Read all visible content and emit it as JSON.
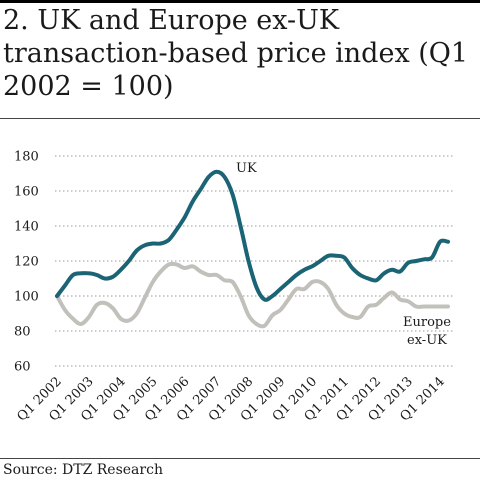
{
  "title": "2. UK and Europe ex-UK transaction-based price index (Q1 2002 = 100)",
  "source": "Source: DTZ Research",
  "colors": {
    "uk": "#1a6475",
    "europe": "#c2c0bb",
    "grid": "#9a9a9a",
    "text": "#1a1a1a"
  },
  "chart_data": {
    "type": "line",
    "title": "2. UK and Europe ex-UK transaction-based price index (Q1 2002 = 100)",
    "xlabel": "",
    "ylabel": "",
    "ylim": [
      60,
      180
    ],
    "yticks": [
      "60",
      "80",
      "100",
      "120",
      "140",
      "160",
      "180"
    ],
    "ytick_values": [
      60,
      80,
      100,
      120,
      140,
      160,
      180
    ],
    "xticks": [
      "Q1 2002",
      "Q1 2003",
      "Q1 2004",
      "Q1 2005",
      "Q1 2006",
      "Q1 2007",
      "Q1 2008",
      "Q1 2009",
      "Q1 2010",
      "Q1 2011",
      "Q1 2012",
      "Q1 2013",
      "Q1 2014"
    ],
    "grid": "horizontal dotted",
    "legend": "inline labels",
    "series": [
      {
        "name": "UK",
        "label_lines": [
          "UK"
        ],
        "x": [
          "2002Q1",
          "2002Q2",
          "2002Q3",
          "2002Q4",
          "2003Q1",
          "2003Q2",
          "2003Q3",
          "2003Q4",
          "2004Q1",
          "2004Q2",
          "2004Q3",
          "2004Q4",
          "2005Q1",
          "2005Q2",
          "2005Q3",
          "2005Q4",
          "2006Q1",
          "2006Q2",
          "2006Q3",
          "2006Q4",
          "2007Q1",
          "2007Q2",
          "2007Q3",
          "2007Q4",
          "2008Q1",
          "2008Q2",
          "2008Q3",
          "2008Q4",
          "2009Q1",
          "2009Q2",
          "2009Q3",
          "2009Q4",
          "2010Q1",
          "2010Q2",
          "2010Q3",
          "2010Q4",
          "2011Q1",
          "2011Q2",
          "2011Q3",
          "2011Q4",
          "2012Q1",
          "2012Q2",
          "2012Q3",
          "2012Q4",
          "2013Q1",
          "2013Q2",
          "2013Q3",
          "2013Q4",
          "2014Q1",
          "2014Q2"
        ],
        "values": [
          100,
          106,
          112,
          113,
          113,
          112,
          110,
          111,
          115,
          120,
          126,
          129,
          130,
          130,
          132,
          138,
          145,
          154,
          161,
          168,
          171,
          168,
          158,
          140,
          120,
          105,
          98,
          100,
          104,
          108,
          112,
          115,
          117,
          120,
          123,
          123,
          122,
          116,
          112,
          110,
          109,
          113,
          115,
          114,
          119,
          120,
          121,
          122,
          131,
          131
        ]
      },
      {
        "name": "Europe ex-UK",
        "label_lines": [
          "Europe",
          "ex-UK"
        ],
        "x": [
          "2002Q1",
          "2002Q2",
          "2002Q3",
          "2002Q4",
          "2003Q1",
          "2003Q2",
          "2003Q3",
          "2003Q4",
          "2004Q1",
          "2004Q2",
          "2004Q3",
          "2004Q4",
          "2005Q1",
          "2005Q2",
          "2005Q3",
          "2005Q4",
          "2006Q1",
          "2006Q2",
          "2006Q3",
          "2006Q4",
          "2007Q1",
          "2007Q2",
          "2007Q3",
          "2007Q4",
          "2008Q1",
          "2008Q2",
          "2008Q3",
          "2008Q4",
          "2009Q1",
          "2009Q2",
          "2009Q3",
          "2009Q4",
          "2010Q1",
          "2010Q2",
          "2010Q3",
          "2010Q4",
          "2011Q1",
          "2011Q2",
          "2011Q3",
          "2011Q4",
          "2012Q1",
          "2012Q2",
          "2012Q3",
          "2012Q4",
          "2013Q1",
          "2013Q2",
          "2013Q3",
          "2013Q4",
          "2014Q1",
          "2014Q2"
        ],
        "values": [
          100,
          92,
          87,
          84,
          88,
          95,
          96,
          93,
          87,
          86,
          90,
          99,
          108,
          114,
          118,
          118,
          116,
          117,
          114,
          112,
          112,
          109,
          108,
          100,
          89,
          84,
          83,
          89,
          92,
          98,
          104,
          104,
          108,
          108,
          104,
          95,
          90,
          88,
          88,
          94,
          95,
          99,
          102,
          98,
          97,
          94,
          94,
          94,
          94,
          94
        ]
      }
    ]
  }
}
